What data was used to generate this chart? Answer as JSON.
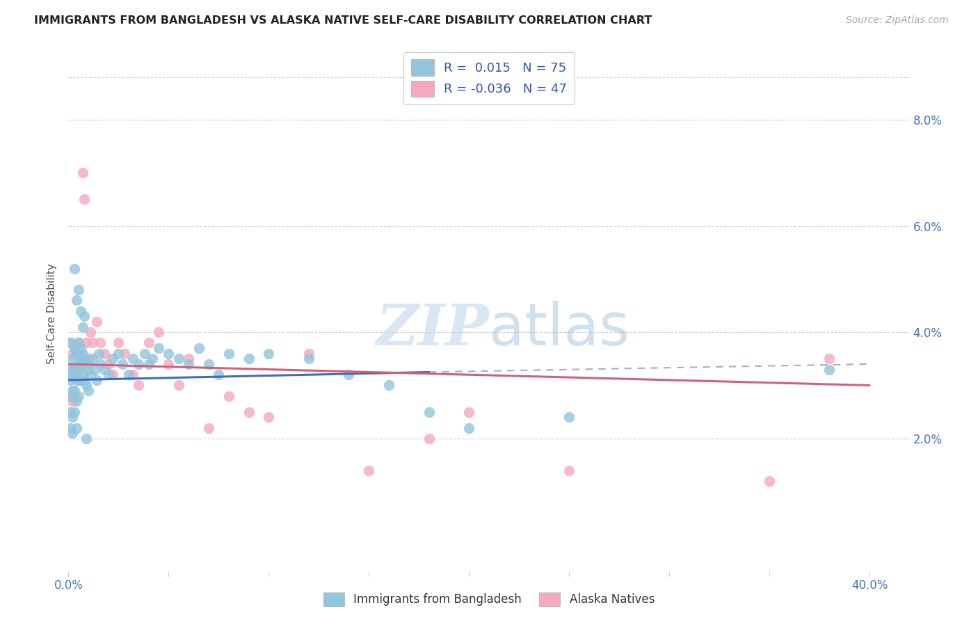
{
  "title": "IMMIGRANTS FROM BANGLADESH VS ALASKA NATIVE SELF-CARE DISABILITY CORRELATION CHART",
  "source": "Source: ZipAtlas.com",
  "ylabel": "Self-Care Disability",
  "ytick_vals": [
    0.02,
    0.04,
    0.06,
    0.08
  ],
  "ytick_labels": [
    "2.0%",
    "4.0%",
    "6.0%",
    "8.0%"
  ],
  "xlim": [
    0.0,
    0.42
  ],
  "ylim": [
    -0.005,
    0.092
  ],
  "legend_label1": "Immigrants from Bangladesh",
  "legend_label2": "Alaska Natives",
  "r1": "0.015",
  "n1": "75",
  "r2": "-0.036",
  "n2": "47",
  "color_blue": "#92C5DE",
  "color_pink": "#F4A9BE",
  "color_blue_line": "#3A6FBF",
  "color_pink_line": "#D45F7A",
  "color_dashed": "#AAAACC",
  "watermark_color": "#C8DDEF",
  "blue_x": [
    0.001,
    0.001,
    0.001,
    0.001,
    0.001,
    0.001,
    0.002,
    0.002,
    0.002,
    0.002,
    0.002,
    0.003,
    0.003,
    0.003,
    0.003,
    0.004,
    0.004,
    0.004,
    0.004,
    0.005,
    0.005,
    0.005,
    0.005,
    0.006,
    0.006,
    0.006,
    0.007,
    0.007,
    0.008,
    0.008,
    0.009,
    0.009,
    0.01,
    0.01,
    0.011,
    0.012,
    0.013,
    0.014,
    0.015,
    0.016,
    0.018,
    0.02,
    0.022,
    0.025,
    0.027,
    0.03,
    0.032,
    0.035,
    0.038,
    0.04,
    0.042,
    0.045,
    0.05,
    0.055,
    0.06,
    0.065,
    0.07,
    0.075,
    0.08,
    0.09,
    0.1,
    0.12,
    0.14,
    0.16,
    0.18,
    0.2,
    0.25,
    0.003,
    0.004,
    0.005,
    0.006,
    0.007,
    0.008,
    0.009,
    0.38
  ],
  "blue_y": [
    0.038,
    0.033,
    0.031,
    0.028,
    0.025,
    0.022,
    0.035,
    0.032,
    0.029,
    0.024,
    0.021,
    0.037,
    0.033,
    0.029,
    0.025,
    0.036,
    0.033,
    0.027,
    0.022,
    0.038,
    0.035,
    0.031,
    0.028,
    0.037,
    0.034,
    0.031,
    0.036,
    0.032,
    0.035,
    0.031,
    0.034,
    0.03,
    0.033,
    0.029,
    0.032,
    0.035,
    0.033,
    0.031,
    0.036,
    0.034,
    0.033,
    0.032,
    0.035,
    0.036,
    0.034,
    0.032,
    0.035,
    0.034,
    0.036,
    0.034,
    0.035,
    0.037,
    0.036,
    0.035,
    0.034,
    0.037,
    0.034,
    0.032,
    0.036,
    0.035,
    0.036,
    0.035,
    0.032,
    0.03,
    0.025,
    0.022,
    0.024,
    0.052,
    0.046,
    0.048,
    0.044,
    0.041,
    0.043,
    0.02,
    0.033
  ],
  "pink_x": [
    0.001,
    0.001,
    0.001,
    0.002,
    0.002,
    0.002,
    0.003,
    0.003,
    0.003,
    0.004,
    0.004,
    0.005,
    0.005,
    0.006,
    0.006,
    0.007,
    0.007,
    0.008,
    0.009,
    0.01,
    0.011,
    0.012,
    0.014,
    0.016,
    0.018,
    0.02,
    0.022,
    0.025,
    0.028,
    0.032,
    0.035,
    0.04,
    0.045,
    0.05,
    0.055,
    0.06,
    0.07,
    0.08,
    0.09,
    0.1,
    0.12,
    0.15,
    0.18,
    0.2,
    0.25,
    0.35,
    0.38
  ],
  "pink_y": [
    0.038,
    0.033,
    0.028,
    0.036,
    0.032,
    0.027,
    0.037,
    0.033,
    0.028,
    0.036,
    0.031,
    0.038,
    0.033,
    0.036,
    0.031,
    0.035,
    0.07,
    0.065,
    0.038,
    0.035,
    0.04,
    0.038,
    0.042,
    0.038,
    0.036,
    0.034,
    0.032,
    0.038,
    0.036,
    0.032,
    0.03,
    0.038,
    0.04,
    0.034,
    0.03,
    0.035,
    0.022,
    0.028,
    0.025,
    0.024,
    0.036,
    0.014,
    0.02,
    0.025,
    0.014,
    0.012,
    0.035
  ],
  "trend_x_start": 0.0,
  "trend_x_blue_solid_end": 0.18,
  "trend_x_end": 0.4,
  "blue_trend_y_start": 0.031,
  "blue_trend_y_solid_end": 0.0325,
  "blue_trend_y_end": 0.034,
  "pink_trend_y_start": 0.034,
  "pink_trend_y_end": 0.03
}
